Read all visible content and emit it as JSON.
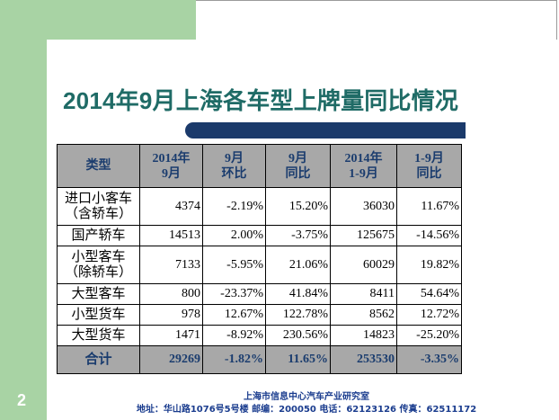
{
  "slide": {
    "title": "2014年9月上海各车型上牌量同比情况",
    "page_number": "2",
    "footer_org": "上海市信息中心汽车产业研究室",
    "footer_contact": "地址：华山路1076号5号楼  邮编：200050  电话：62123126  传真：62511172"
  },
  "table": {
    "headers": [
      [
        "类型",
        ""
      ],
      [
        "2014年",
        "9月"
      ],
      [
        "9月",
        "环比"
      ],
      [
        "9月",
        "同比"
      ],
      [
        "2014年",
        "1-9月"
      ],
      [
        "1-9月",
        "同比"
      ]
    ],
    "rows": [
      {
        "type": [
          "进口小客车",
          "（含轿车）"
        ],
        "sept": "4374",
        "mom": "-2.19%",
        "yoy": "15.20%",
        "ytd": "36030",
        "ytd_yoy": "11.67%"
      },
      {
        "type": [
          "国产轿车",
          ""
        ],
        "sept": "14513",
        "mom": "2.00%",
        "yoy": "-3.75%",
        "ytd": "125675",
        "ytd_yoy": "-14.56%"
      },
      {
        "type": [
          "小型客车",
          "（除轿车）"
        ],
        "sept": "7133",
        "mom": "-5.95%",
        "yoy": "21.06%",
        "ytd": "60029",
        "ytd_yoy": "19.82%"
      },
      {
        "type": [
          "大型客车",
          ""
        ],
        "sept": "800",
        "mom": "-23.37%",
        "yoy": "41.84%",
        "ytd": "8411",
        "ytd_yoy": "54.64%"
      },
      {
        "type": [
          "小型货车",
          ""
        ],
        "sept": "978",
        "mom": "12.67%",
        "yoy": "122.78%",
        "ytd": "8562",
        "ytd_yoy": "12.72%"
      },
      {
        "type": [
          "大型货车",
          ""
        ],
        "sept": "1471",
        "mom": "-8.92%",
        "yoy": "230.56%",
        "ytd": "14823",
        "ytd_yoy": "-25.20%"
      }
    ],
    "total": {
      "label": "合计",
      "sept": "29269",
      "mom": "-1.82%",
      "yoy": "11.65%",
      "ytd": "253530",
      "ytd_yoy": "-3.35%"
    }
  },
  "colors": {
    "accent_green": "#a8d3a4",
    "title_teal": "#1f6b66",
    "bar_navy": "#1b3a6b",
    "header_gray": "#a8a8a8"
  }
}
